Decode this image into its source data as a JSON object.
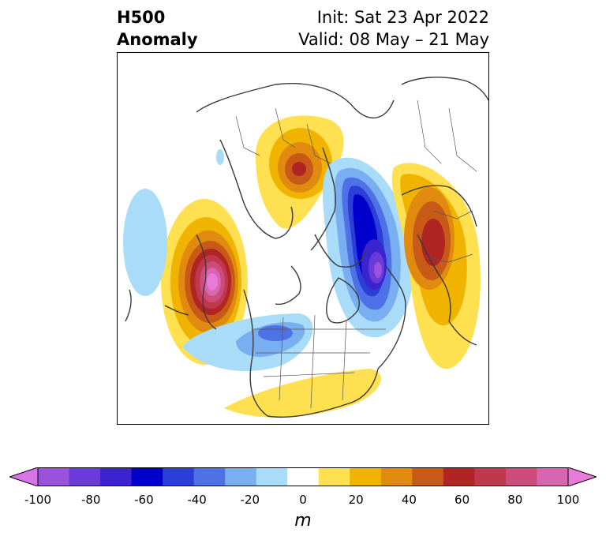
{
  "title": {
    "left_line1": "H500",
    "left_line2": "Anomaly",
    "right_line1": "Init: Sat 23 Apr 2022",
    "right_line2": "Valid: 08 May – 21 May"
  },
  "colorbar": {
    "unit": "m",
    "tick_labels": [
      "-100",
      "-80",
      "-60",
      "-40",
      "-20",
      "0",
      "20",
      "40",
      "60",
      "80",
      "100"
    ],
    "colors": [
      "#d774e8",
      "#9a52dc",
      "#6a3bd8",
      "#3b23cf",
      "#0000cc",
      "#2b3ed8",
      "#4e72e6",
      "#79aef0",
      "#a9dcf8",
      "#ffffff",
      "#ffe050",
      "#f0b400",
      "#e08a10",
      "#c85a18",
      "#b02424",
      "#c0384e",
      "#cc4c7c",
      "#d865b0",
      "#e87ad8"
    ],
    "min": -100,
    "max": 100,
    "step": 10
  },
  "map": {
    "projection": "north-polar-stereographic",
    "field": "500 hPa geopotential height anomaly"
  }
}
